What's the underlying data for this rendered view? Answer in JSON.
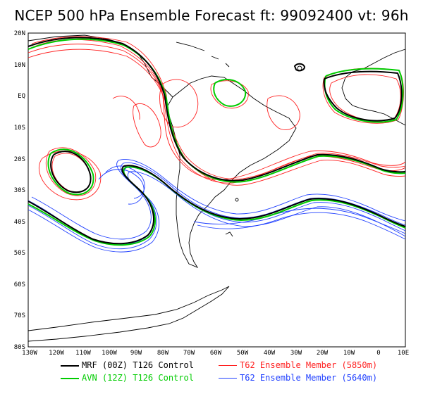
{
  "title": "NCEP 500 hPa Ensemble Forecast   ft: 99092400  vt: 96h",
  "map": {
    "lat_labels": [
      "20N",
      "10N",
      "EQ",
      "10S",
      "20S",
      "30S",
      "40S",
      "50S",
      "60S",
      "70S",
      "80S"
    ],
    "lon_labels": [
      "130W",
      "120W",
      "110W",
      "100W",
      "90W",
      "80W",
      "70W",
      "60W",
      "50W",
      "40W",
      "30W",
      "20W",
      "10W",
      "0",
      "10E"
    ]
  },
  "legend": [
    {
      "label": "MRF (00Z) T126 Control",
      "color": "#000000"
    },
    {
      "label": "T62 Ensemble Member (5850m)",
      "color": "#ff2020"
    },
    {
      "label": "AVN (12Z) T126 Control",
      "color": "#00cc00"
    },
    {
      "label": "T62 Ensemble Member (5640m)",
      "color": "#2040ff"
    }
  ]
}
